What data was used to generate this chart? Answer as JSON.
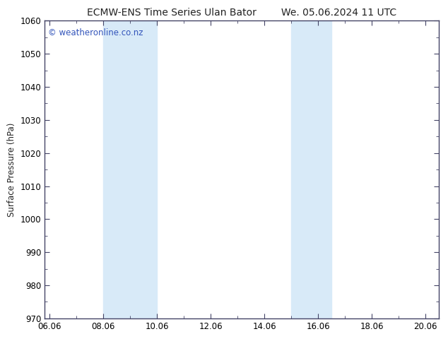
{
  "title_left": "ECMW-ENS Time Series Ulan Bator",
  "title_right": "We. 05.06.2024 11 UTC",
  "ylabel": "Surface Pressure (hPa)",
  "xlabel": "",
  "ylim": [
    970,
    1060
  ],
  "yticks": [
    970,
    980,
    990,
    1000,
    1010,
    1020,
    1030,
    1040,
    1050,
    1060
  ],
  "xlim_start": 5.83,
  "xlim_end": 20.5,
  "xtick_labels": [
    "06.06",
    "08.06",
    "10.06",
    "12.06",
    "14.06",
    "16.06",
    "18.06",
    "20.06"
  ],
  "xtick_positions": [
    6.0,
    8.0,
    10.0,
    12.0,
    14.0,
    16.0,
    18.0,
    20.0
  ],
  "shade_bands": [
    {
      "xmin": 8.0,
      "xmax": 10.0
    },
    {
      "xmin": 15.0,
      "xmax": 16.5
    }
  ],
  "shade_color": "#d8eaf8",
  "watermark": "© weatheronline.co.nz",
  "watermark_color": "#3355bb",
  "watermark_fontsize": 8.5,
  "bg_color": "#ffffff",
  "title_fontsize": 10,
  "tick_fontsize": 8.5,
  "ylabel_fontsize": 8.5,
  "spine_color": "#444466",
  "title_color": "#222222"
}
